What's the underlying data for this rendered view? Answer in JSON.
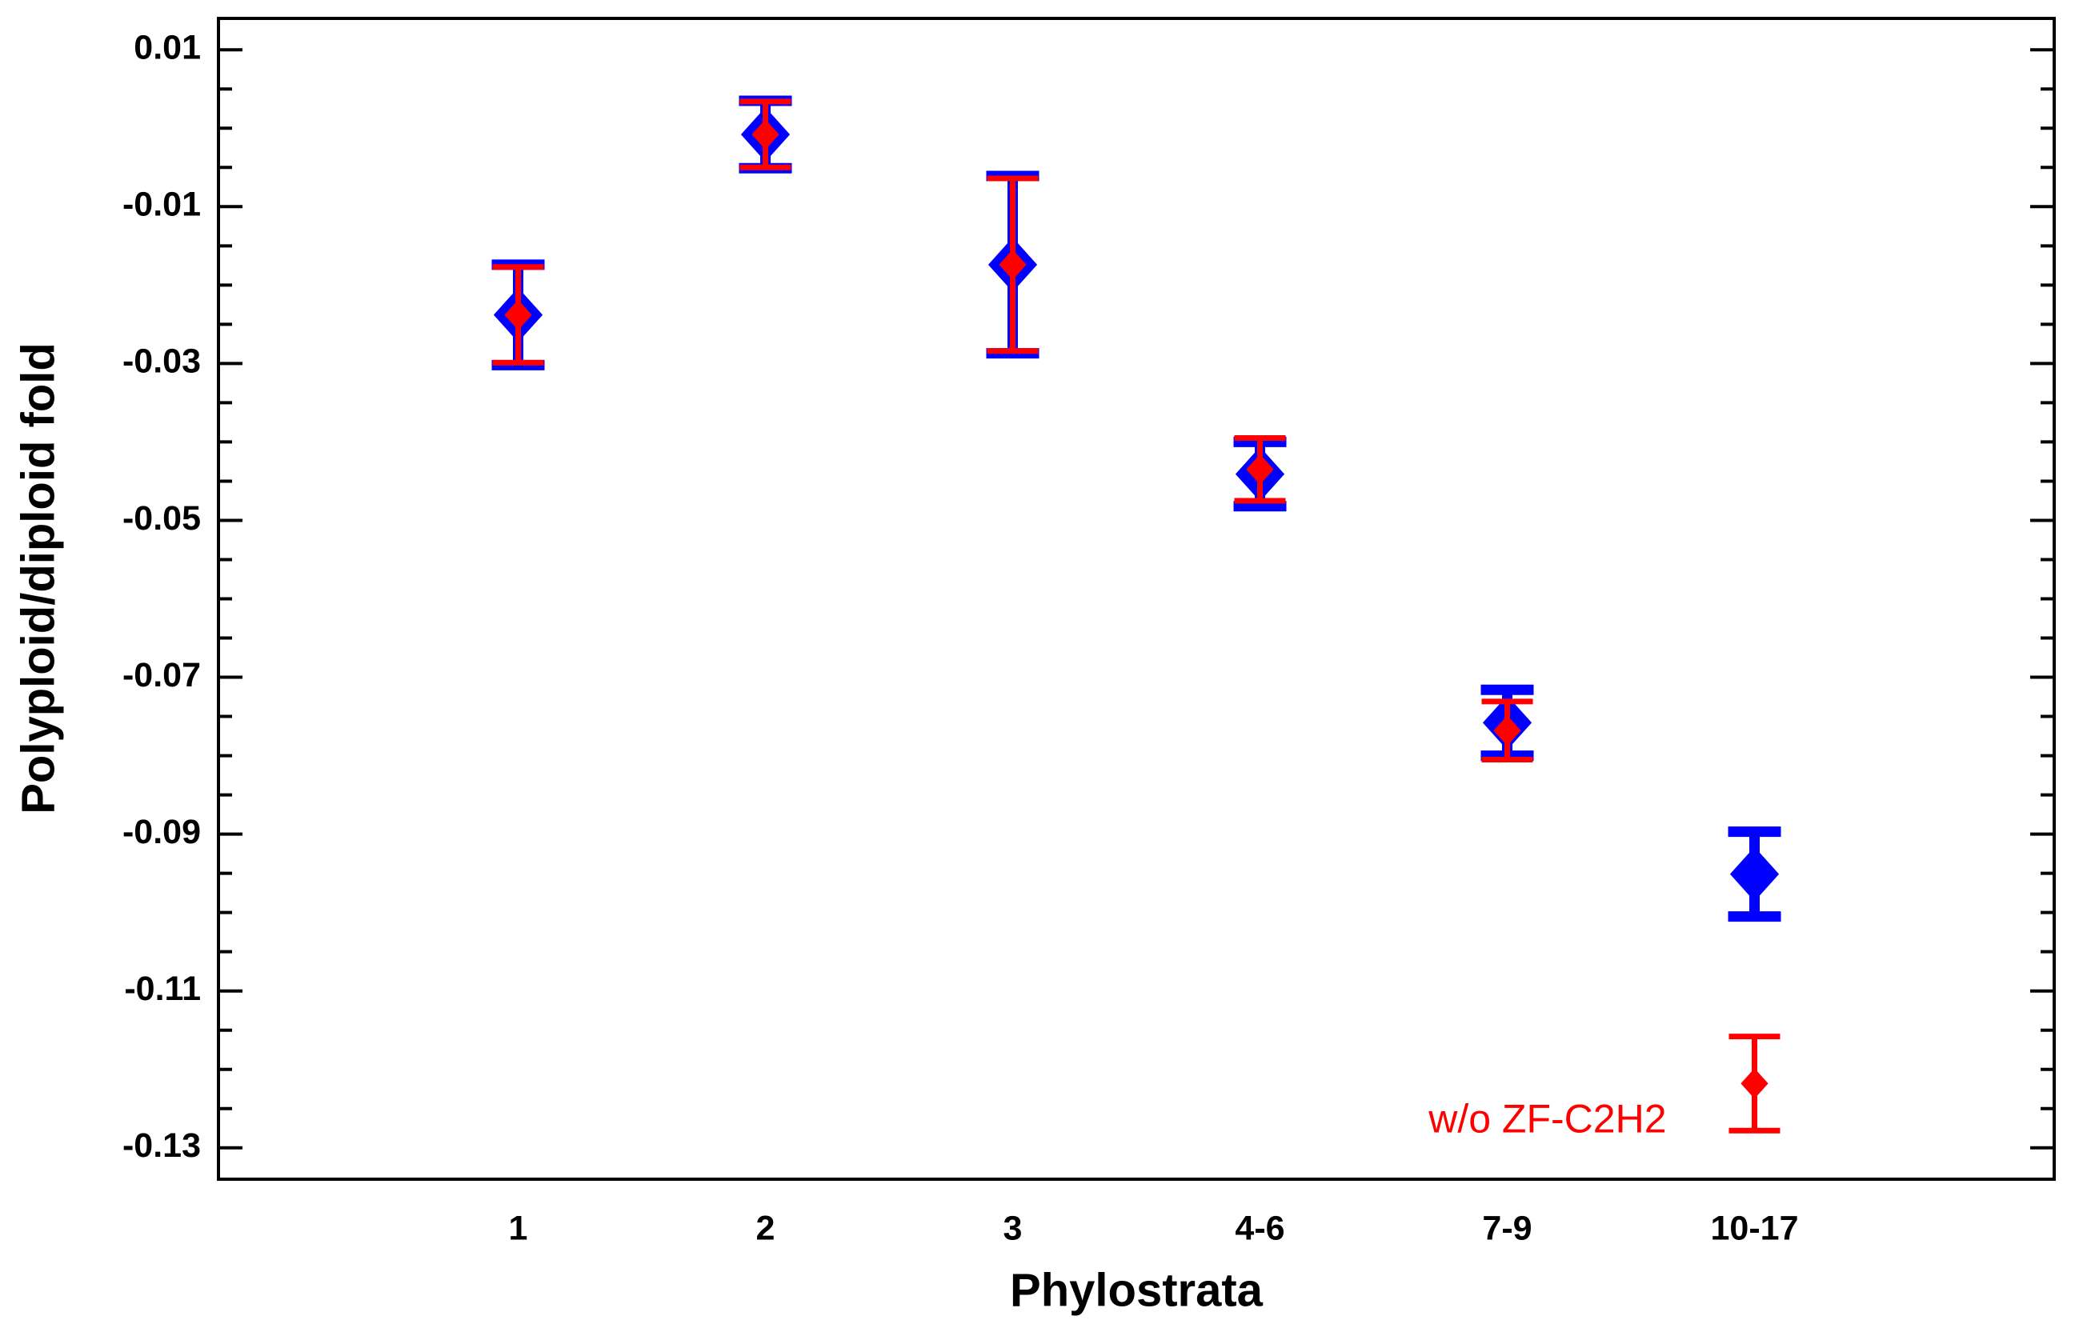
{
  "chart_data": {
    "type": "errorbar",
    "xlabel": "Phylostrata",
    "ylabel": "Polyploid/diploid fold",
    "categories": [
      "1",
      "2",
      "3",
      "4-6",
      "7-9",
      "10-17"
    ],
    "ylim": [
      -0.134,
      0.014
    ],
    "yticks": [
      -0.13,
      -0.11,
      -0.09,
      -0.07,
      -0.05,
      -0.03,
      -0.01,
      0.01
    ],
    "yminorticks": [
      0.005,
      0,
      -0.005,
      -0.015,
      -0.02,
      -0.025,
      -0.035,
      -0.04,
      -0.045,
      -0.055,
      -0.06,
      -0.065,
      -0.075,
      -0.08,
      -0.085,
      -0.095,
      -0.1,
      -0.105,
      -0.115,
      -0.12,
      -0.125
    ],
    "series": [
      {
        "color": "#0000ff",
        "values": [
          -0.0238,
          -0.0008,
          -0.0174,
          -0.0441,
          -0.0758,
          -0.0951
        ],
        "errors": [
          0.0064,
          0.0043,
          0.0113,
          0.0041,
          0.0042,
          0.0054
        ]
      },
      {
        "name": "w/o ZF-C2H2",
        "color": "#ff0000",
        "values": [
          -0.0238,
          -0.0008,
          -0.0174,
          -0.0435,
          -0.0768,
          -0.1218
        ],
        "errors": [
          0.0061,
          0.0042,
          0.011,
          0.004,
          0.0037,
          0.006
        ]
      }
    ]
  }
}
